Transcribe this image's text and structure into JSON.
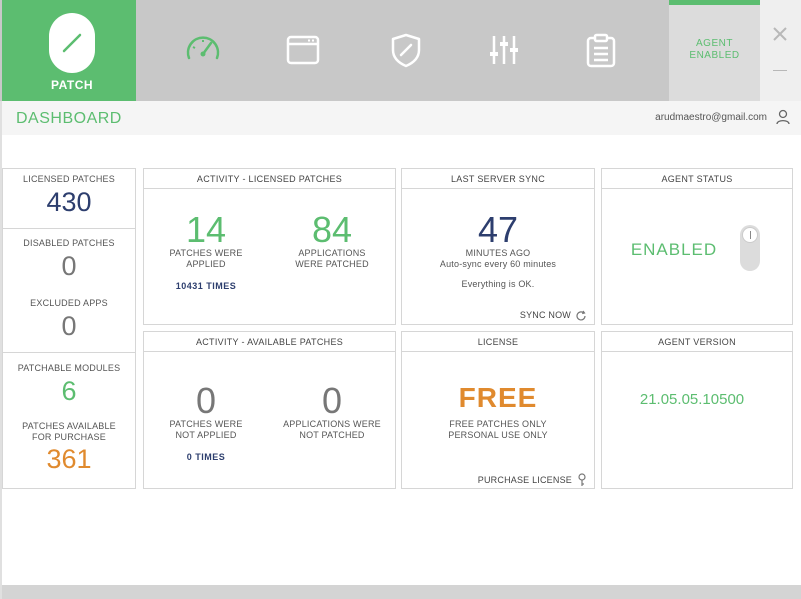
{
  "app": {
    "logo_text": "PATCH",
    "agent_tab": {
      "line1": "AGENT",
      "line2": "ENABLED"
    }
  },
  "nav_icons": [
    "speedometer-icon",
    "window-icon",
    "shield-icon",
    "sliders-icon",
    "clipboard-icon"
  ],
  "subheader": {
    "title": "DASHBOARD",
    "user_email": "arudmaestro@gmail.com"
  },
  "left_panel": {
    "licensed_patches": {
      "label": "LICENSED PATCHES",
      "value": "430"
    },
    "disabled_patches": {
      "label": "DISABLED PATCHES",
      "value": "0"
    },
    "excluded_apps": {
      "label": "EXCLUDED APPS",
      "value": "0"
    },
    "patchable_modules": {
      "label": "PATCHABLE MODULES",
      "value": "6"
    },
    "patches_available": {
      "label_line1": "PATCHES AVAILABLE",
      "label_line2": "FOR PURCHASE",
      "value": "361"
    }
  },
  "activity_licensed": {
    "title": "ACTIVITY - LICENSED PATCHES",
    "applied_value": "14",
    "applied_line1": "PATCHES WERE",
    "applied_line2": "APPLIED",
    "patched_value": "84",
    "patched_line1": "APPLICATIONS",
    "patched_line2": "WERE PATCHED",
    "times": "10431 TIMES"
  },
  "last_sync": {
    "title": "LAST SERVER SYNC",
    "value": "47",
    "unit": "MINUTES AGO",
    "auto_sync": "Auto-sync every 60 minutes",
    "status": "Everything is OK.",
    "sync_now": "SYNC NOW"
  },
  "agent_status": {
    "title": "AGENT STATUS",
    "value": "ENABLED"
  },
  "activity_available": {
    "title": "ACTIVITY - AVAILABLE PATCHES",
    "not_applied_value": "0",
    "not_applied_line1": "PATCHES WERE",
    "not_applied_line2": "NOT APPLIED",
    "not_patched_value": "0",
    "not_patched_line1": "APPLICATIONS WERE",
    "not_patched_line2": "NOT PATCHED",
    "times": "0 TIMES"
  },
  "license": {
    "title": "LICENSE",
    "value": "FREE",
    "line1": "FREE PATCHES ONLY",
    "line2": "PERSONAL USE ONLY",
    "purchase": "PURCHASE LICENSE"
  },
  "agent_version": {
    "title": "AGENT VERSION",
    "value": "21.05.05.10500"
  },
  "colors": {
    "green": "#5cbd70",
    "navy": "#2d3e6e",
    "orange": "#e08a2e",
    "grey": "#777777"
  }
}
